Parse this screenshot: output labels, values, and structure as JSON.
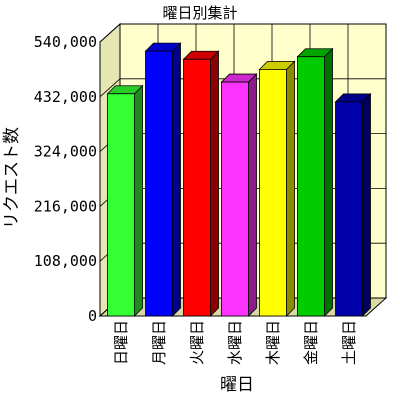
{
  "chart_data": {
    "type": "bar",
    "title": "曜日別集計",
    "xlabel": "曜日",
    "ylabel": "リクエスト数",
    "categories": [
      "日曜日",
      "月曜日",
      "火曜日",
      "水曜日",
      "木曜日",
      "金曜日",
      "土曜日"
    ],
    "values": [
      438000,
      522000,
      506000,
      461000,
      486000,
      511000,
      422000
    ],
    "colors": [
      "#33ff33",
      "#0000ff",
      "#ff0000",
      "#ff33ff",
      "#ffff00",
      "#00cc00",
      "#0000aa"
    ],
    "yticks": [
      0,
      108000,
      216000,
      324000,
      432000,
      540000
    ],
    "ytick_labels": [
      "0",
      "108,000",
      "216,000",
      "324,000",
      "432,000",
      "540,000"
    ],
    "ylim": [
      0,
      540000
    ],
    "grid": true,
    "style": "3d",
    "wall_color": "#ffffcc",
    "side_wall_color": "#e6e6b3",
    "floor_color": "#d9d9a6"
  }
}
